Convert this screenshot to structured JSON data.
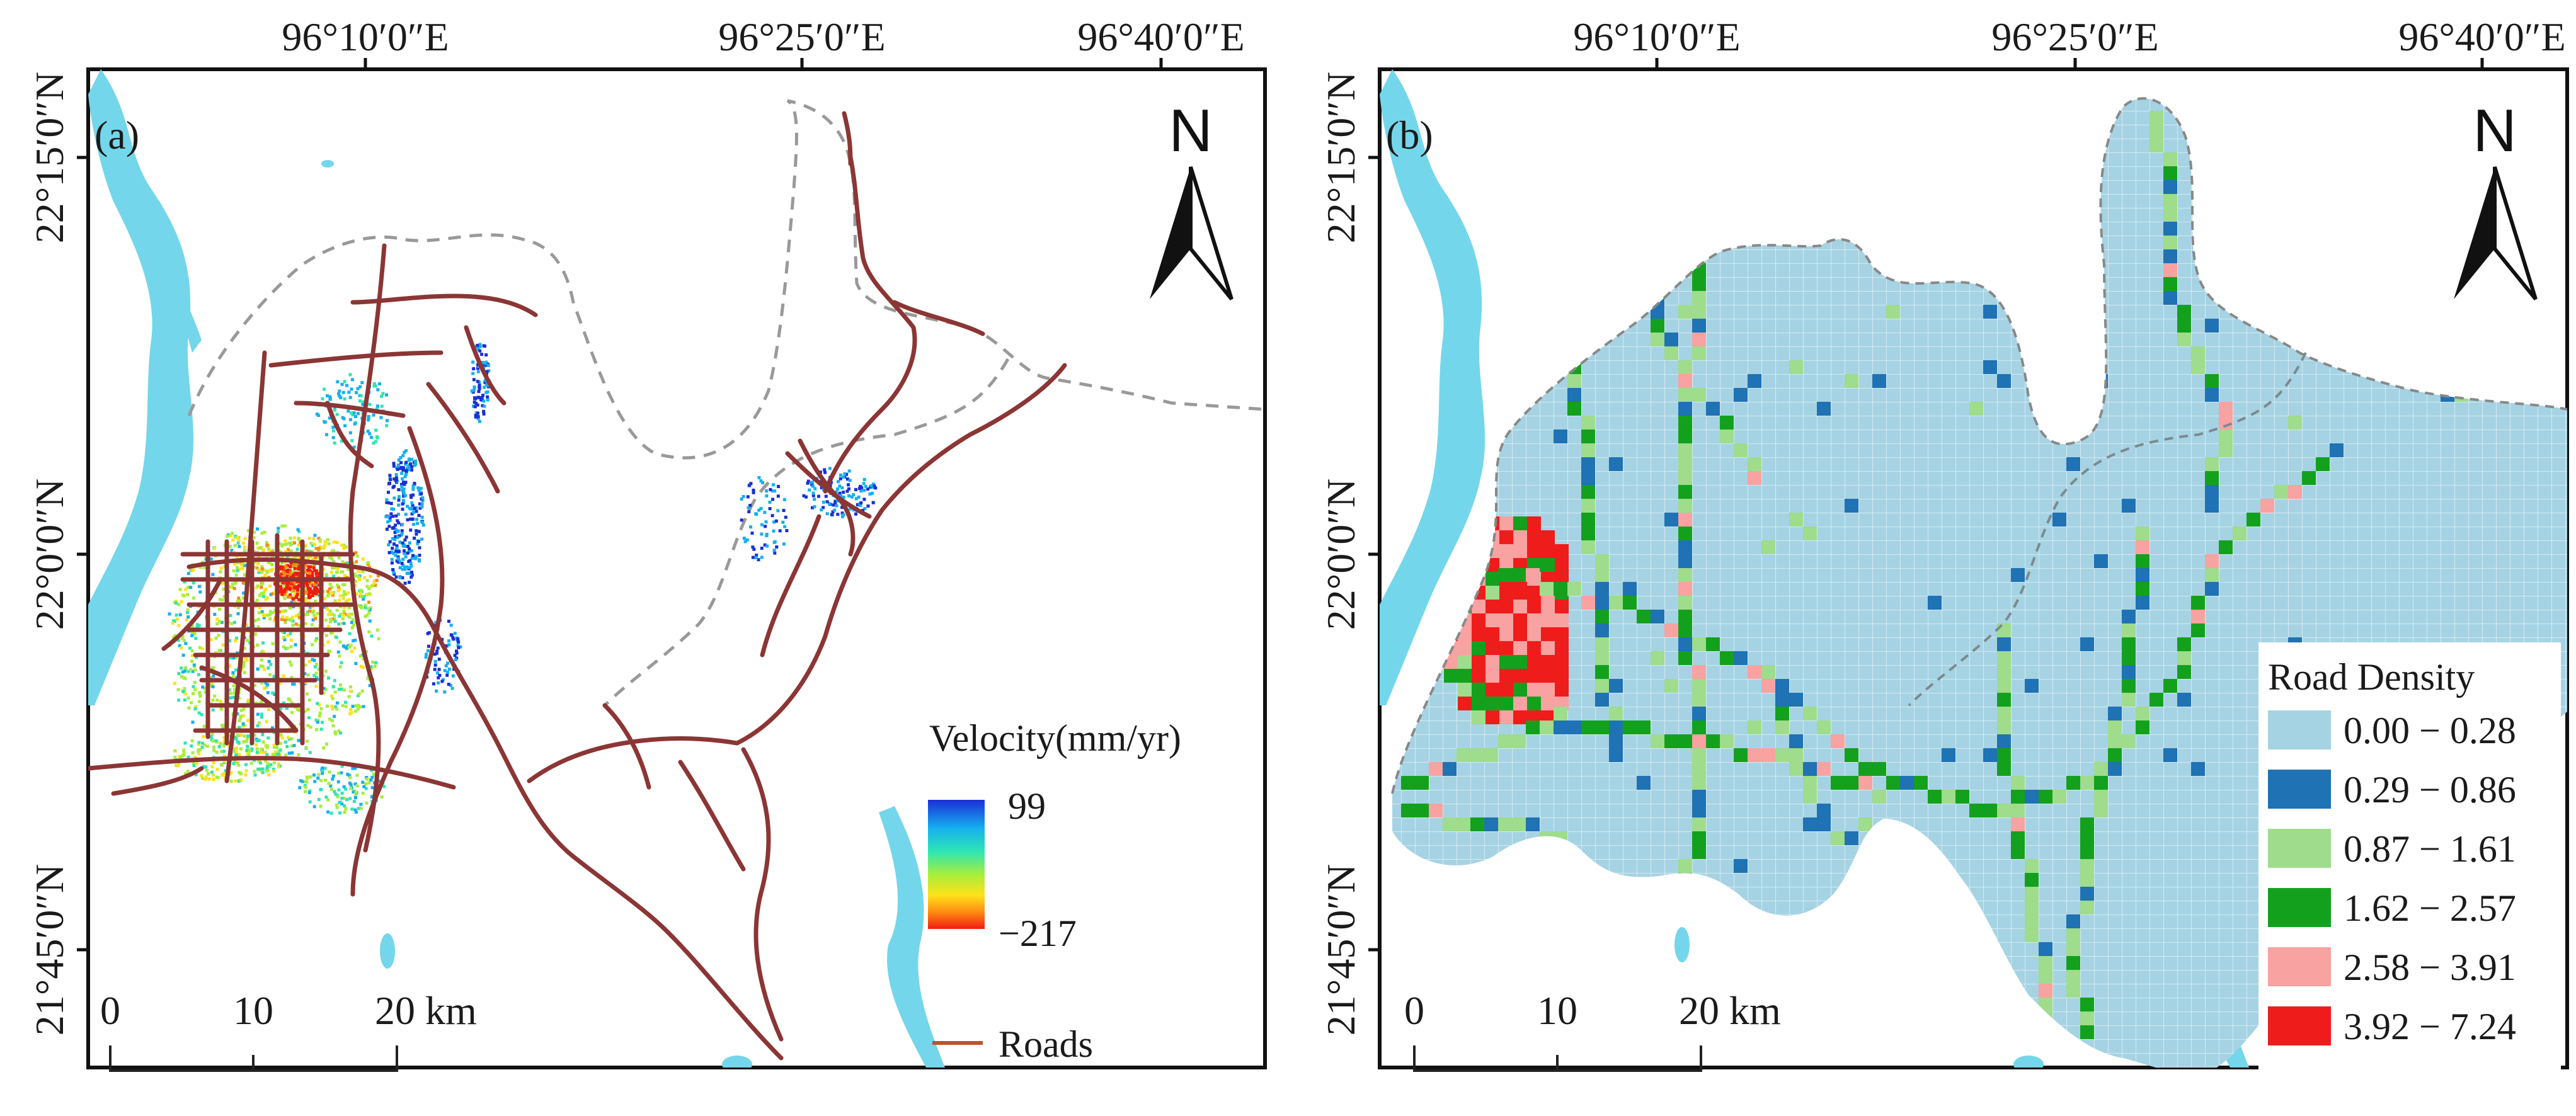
{
  "panels": [
    {
      "label": "(a)",
      "top_lon": [
        "96°10′0″E",
        "96°25′0″E",
        "96°40′0″E"
      ],
      "left_lat": [
        "22°15′0″N",
        "22°0′0″N",
        "21°45′0″N"
      ],
      "north": "N",
      "scale": {
        "ticks": [
          "0",
          "10",
          "20 km"
        ]
      },
      "legend": {
        "title": "Velocity(mm/yr)",
        "max": "99",
        "min": "−217",
        "roads_label": "Roads",
        "colors": [
          "#1a2fd6",
          "#16b0f0",
          "#2ee6b4",
          "#a8ee3c",
          "#ffe21a",
          "#ff8a12",
          "#f01c10"
        ]
      }
    },
    {
      "label": "(b)",
      "top_lon": [
        "96°10′0″E",
        "96°25′0″E",
        "96°40′0″E"
      ],
      "left_lat": [
        "22°15′0″N",
        "22°0′0″N",
        "21°45′0″N"
      ],
      "north": "N",
      "scale": {
        "ticks": [
          "0",
          "10",
          "20 km"
        ]
      },
      "legend": {
        "title": "Road Density",
        "classes": [
          {
            "label": "0.00 − 0.28",
            "color": "#a6d3e3"
          },
          {
            "label": "0.29 − 0.86",
            "color": "#1f72b4"
          },
          {
            "label": "0.87 − 1.61",
            "color": "#9fdc8c"
          },
          {
            "label": "1.62 − 2.57",
            "color": "#13a11d"
          },
          {
            "label": "2.58 − 3.91",
            "color": "#f8a2a2"
          },
          {
            "label": "3.92 − 7.24",
            "color": "#ef1c1c"
          }
        ]
      }
    }
  ]
}
